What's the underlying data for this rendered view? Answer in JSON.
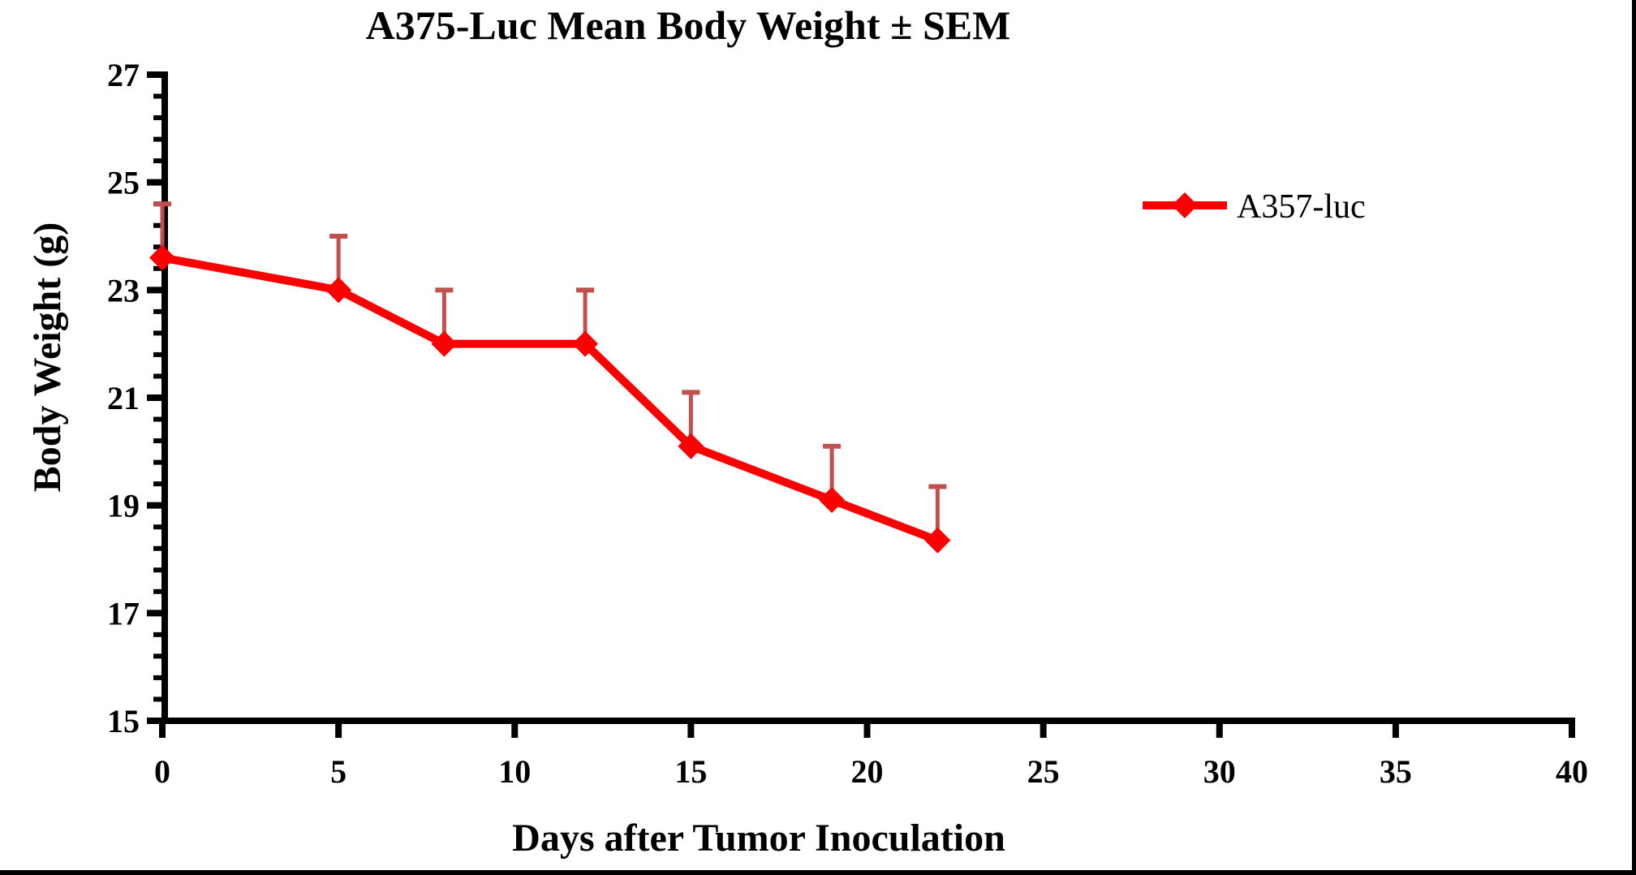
{
  "window": {
    "background_color": "#ffffff",
    "frame_border_color": "#000000"
  },
  "chart_data": {
    "type": "line",
    "title": "A375-Luc Mean Body Weight ± SEM",
    "xlabel": "Days after Tumor Inoculation",
    "ylabel": "Body Weight (g)",
    "xlim": [
      0,
      40
    ],
    "ylim": [
      15,
      27
    ],
    "x_ticks": [
      0,
      5,
      10,
      15,
      20,
      25,
      30,
      35,
      40
    ],
    "y_ticks": [
      15,
      17,
      19,
      21,
      23,
      25,
      27
    ],
    "y_minor_tick_step": 0.4,
    "grid": false,
    "axis_color": "#000000",
    "legend": {
      "position": "upper-right",
      "entries": [
        {
          "label": "A357-luc",
          "color": "#fa0000",
          "marker": "diamond"
        }
      ]
    },
    "series": [
      {
        "name": "A357-luc",
        "marker": "diamond",
        "line_color": "#fa0000",
        "error_bar_color": "#c0504d",
        "error_bars": "upper SEM only",
        "x": [
          0,
          5,
          8,
          12,
          15,
          19,
          22
        ],
        "y": [
          23.6,
          23.0,
          22.0,
          22.0,
          20.1,
          19.1,
          18.35
        ],
        "sem": [
          1.0,
          1.0,
          1.0,
          1.0,
          1.0,
          1.0,
          1.0
        ]
      }
    ]
  }
}
